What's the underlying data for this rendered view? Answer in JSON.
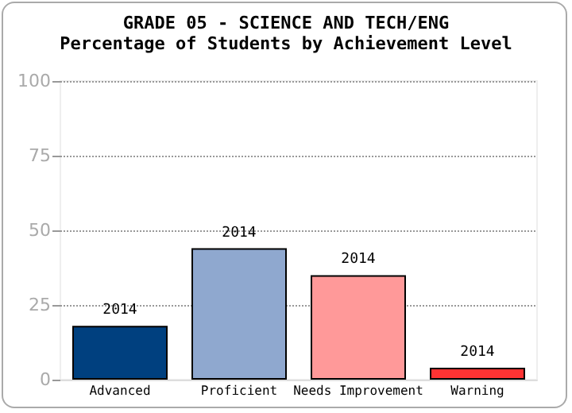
{
  "chart_data": {
    "type": "bar",
    "title": "GRADE 05 - SCIENCE AND TECH/ENG",
    "subtitle": "Percentage of Students by Achievement Level",
    "categories": [
      "Advanced",
      "Proficient",
      "Needs Improvement",
      "Warning"
    ],
    "series": [
      {
        "name": "2014",
        "values": [
          18,
          44,
          35,
          4
        ]
      }
    ],
    "colors": [
      "#00407f",
      "#8fa8cf",
      "#ff9999",
      "#ff3333"
    ],
    "ylim": [
      0,
      100
    ],
    "yticks": [
      0,
      25,
      50,
      75,
      100
    ],
    "grid": "y"
  }
}
